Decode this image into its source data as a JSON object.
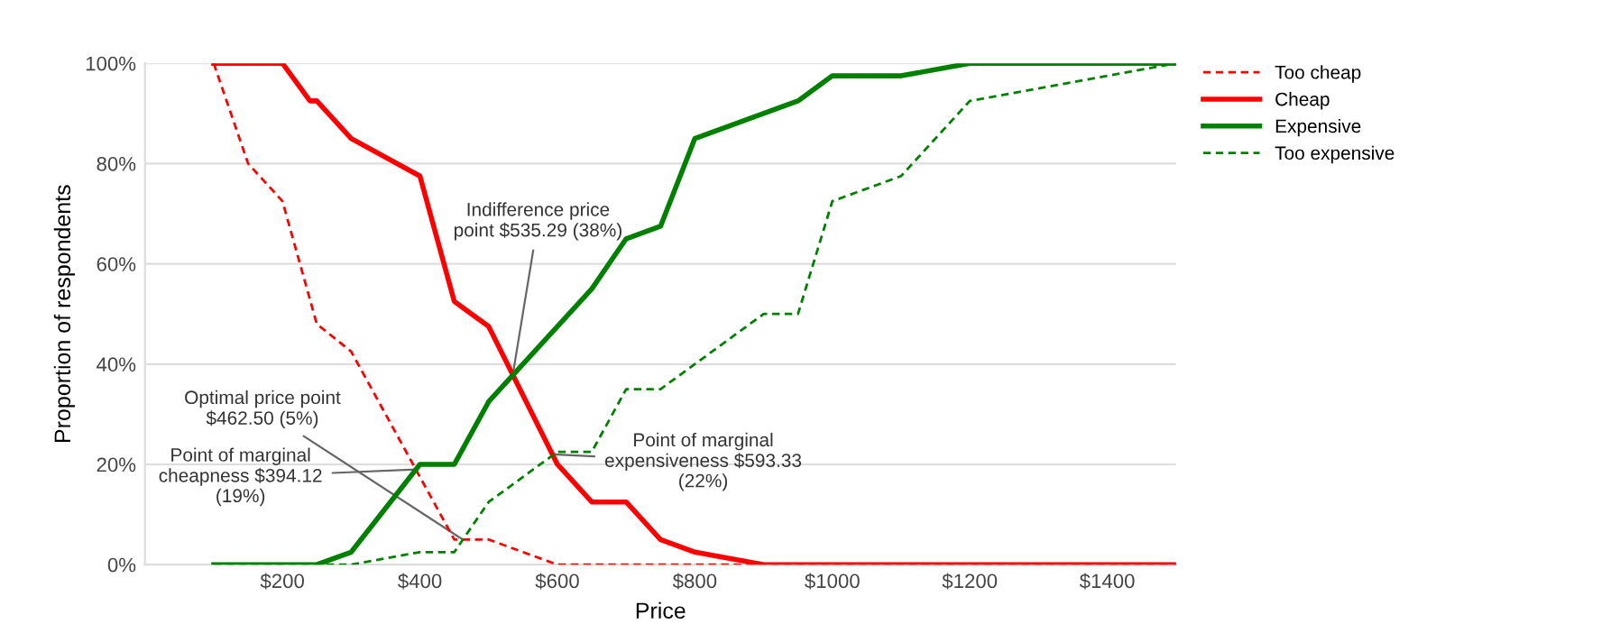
{
  "chart_data": {
    "type": "line",
    "xlabel": "Price",
    "ylabel": "Proportion of respondents",
    "xlim": [
      0,
      1500
    ],
    "ylim": [
      0,
      100
    ],
    "xticks": [
      {
        "value": 200,
        "label": "$200"
      },
      {
        "value": 400,
        "label": "$400"
      },
      {
        "value": 600,
        "label": "$600"
      },
      {
        "value": 800,
        "label": "$800"
      },
      {
        "value": 1000,
        "label": "$1000"
      },
      {
        "value": 1200,
        "label": "$1200"
      },
      {
        "value": 1400,
        "label": "$1400"
      }
    ],
    "yticks": [
      {
        "value": 0,
        "label": "0%"
      },
      {
        "value": 20,
        "label": "20%"
      },
      {
        "value": 40,
        "label": "40%"
      },
      {
        "value": 60,
        "label": "60%"
      },
      {
        "value": 80,
        "label": "80%"
      },
      {
        "value": 100,
        "label": "100%"
      }
    ],
    "grid": "y",
    "legend": "right",
    "marker": "none",
    "series": [
      {
        "name": "Too cheap",
        "color": "#ff0000",
        "line_style": "dashed",
        "x": [
          100,
          150,
          200,
          250,
          300,
          450,
          500,
          600,
          1500
        ],
        "values": [
          100,
          80,
          72.5,
          48,
          42.5,
          5,
          5,
          0,
          0
        ]
      },
      {
        "name": "Cheap",
        "color": "#ff0000",
        "line_style": "solid",
        "x": [
          100,
          200,
          240,
          250,
          300,
          400,
          450,
          500,
          600,
          650,
          700,
          750,
          800,
          900,
          1500
        ],
        "values": [
          100,
          100,
          92.5,
          92.5,
          85,
          77.5,
          52.5,
          47.5,
          20,
          12.5,
          12.5,
          5,
          2.5,
          0,
          0
        ]
      },
      {
        "name": "Expensive",
        "color": "#008000",
        "line_style": "solid",
        "x": [
          100,
          250,
          300,
          400,
          450,
          500,
          650,
          700,
          750,
          800,
          950,
          1000,
          1100,
          1200,
          1500
        ],
        "values": [
          0,
          0,
          2.5,
          20,
          20,
          32.5,
          55,
          65,
          67.5,
          85,
          92.5,
          97.5,
          97.5,
          100,
          100
        ]
      },
      {
        "name": "Too expensive",
        "color": "#008000",
        "line_style": "dashed",
        "x": [
          100,
          300,
          400,
          450,
          500,
          600,
          650,
          700,
          750,
          900,
          950,
          1000,
          1100,
          1200,
          1500
        ],
        "values": [
          0,
          0,
          2.5,
          2.5,
          12.5,
          22.5,
          22.5,
          35,
          35,
          50,
          50,
          72.5,
          77.5,
          92.5,
          100
        ]
      }
    ],
    "annotations": [
      {
        "text": "Indifference price\npoint $535.29 (38%)",
        "x": 535.29,
        "y": 38
      },
      {
        "text": "Optimal price point\n$462.50 (5%)",
        "x": 462.5,
        "y": 5
      },
      {
        "text": "Point of marginal\ncheapness $394.12\n(19%)",
        "x": 394.12,
        "y": 19
      },
      {
        "text": "Point of marginal\nexpensiveness $593.33\n(22%)",
        "x": 593.33,
        "y": 22
      }
    ]
  }
}
